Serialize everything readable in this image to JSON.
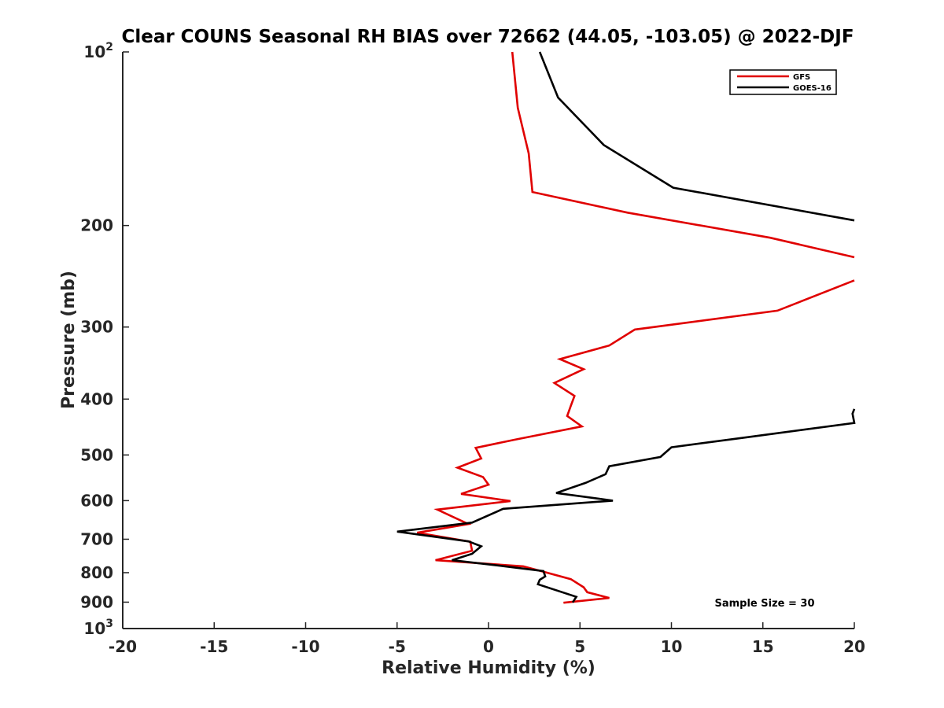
{
  "chart_data": {
    "type": "line",
    "title": "Clear COUNS Seasonal RH BIAS over 72662 (44.05, -103.05) @ 2022-DJF",
    "xlabel": "Relative Humidity (%)",
    "ylabel": "Pressure (mb)",
    "xlim": [
      -20,
      20
    ],
    "ylim": [
      100,
      1000
    ],
    "y_scale": "log",
    "y_reversed": true,
    "x_ticks": [
      "-20",
      "-15",
      "-10",
      "-5",
      "0",
      "5",
      "10",
      "15",
      "20"
    ],
    "y_ticks": [
      {
        "value": 100,
        "base": "10",
        "exp": "2"
      },
      {
        "value": 200,
        "label": "200"
      },
      {
        "value": 300,
        "label": "300"
      },
      {
        "value": 400,
        "label": "400"
      },
      {
        "value": 500,
        "label": "500"
      },
      {
        "value": 600,
        "label": "600"
      },
      {
        "value": 700,
        "label": "700"
      },
      {
        "value": 800,
        "label": "800"
      },
      {
        "value": 900,
        "label": "900"
      },
      {
        "value": 1000,
        "base": "10",
        "exp": "3"
      }
    ],
    "legend_position": "top-right",
    "series": [
      {
        "name": "GFS",
        "color": "#e00000",
        "points": [
          [
            1.3,
            100
          ],
          [
            1.6,
            125
          ],
          [
            2.2,
            150
          ],
          [
            2.4,
            175
          ],
          [
            7.6,
            190
          ],
          [
            15.4,
            210
          ],
          [
            20,
            227
          ],
          [
            null,
            null
          ],
          [
            20,
            249
          ],
          [
            15.8,
            281
          ],
          [
            8.0,
            303
          ],
          [
            6.6,
            323
          ],
          [
            3.9,
            341
          ],
          [
            5.2,
            355
          ],
          [
            3.6,
            375
          ],
          [
            4.7,
            395
          ],
          [
            4.5,
            411
          ],
          [
            4.3,
            428
          ],
          [
            5.1,
            446
          ],
          [
            1.5,
            470
          ],
          [
            -0.7,
            486
          ],
          [
            -0.4,
            507
          ],
          [
            -1.7,
            526
          ],
          [
            -0.3,
            546
          ],
          [
            0,
            563
          ],
          [
            -1.5,
            584
          ],
          [
            1.2,
            601
          ],
          [
            -2.8,
            622
          ],
          [
            -1.1,
            659
          ],
          [
            -3.9,
            682
          ],
          [
            -1.0,
            707
          ],
          [
            -0.9,
            733
          ],
          [
            -2.9,
            761
          ],
          [
            1.9,
            780
          ],
          [
            3.2,
            800
          ],
          [
            4.5,
            821
          ],
          [
            5.2,
            848
          ],
          [
            5.4,
            865
          ],
          [
            6.6,
            885
          ],
          [
            4.1,
            902
          ]
        ]
      },
      {
        "name": "GOES-16",
        "color": "#000000",
        "points": [
          [
            2.8,
            100
          ],
          [
            3.8,
            120
          ],
          [
            6.3,
            145
          ],
          [
            10.1,
            172
          ],
          [
            20,
            196
          ],
          [
            null,
            null
          ],
          [
            20,
            416
          ],
          [
            19.9,
            424
          ],
          [
            20,
            440
          ],
          [
            14.1,
            466
          ],
          [
            10.0,
            485
          ],
          [
            9.4,
            504
          ],
          [
            6.6,
            523
          ],
          [
            6.4,
            540
          ],
          [
            5.3,
            559
          ],
          [
            3.7,
            582
          ],
          [
            6.8,
            600
          ],
          [
            0.8,
            620
          ],
          [
            -0.9,
            655
          ],
          [
            -5.0,
            679
          ],
          [
            -1.1,
            706
          ],
          [
            -0.4,
            720
          ],
          [
            -0.9,
            742
          ],
          [
            -2.0,
            761
          ],
          [
            0.9,
            780
          ],
          [
            3.0,
            795
          ],
          [
            3.1,
            812
          ],
          [
            2.8,
            823
          ],
          [
            2.7,
            838
          ],
          [
            4.8,
            881
          ],
          [
            4.6,
            901
          ]
        ]
      }
    ],
    "annotation": "Sample Size = 30"
  }
}
